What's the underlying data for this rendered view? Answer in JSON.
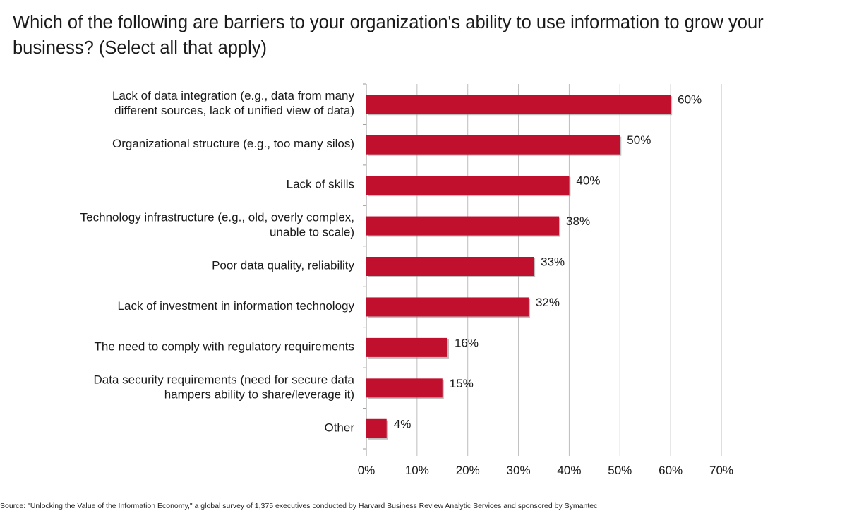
{
  "chart_data": {
    "type": "bar",
    "orientation": "horizontal",
    "title": "Which of the following are barriers to your organization's ability to use information to grow your business? (Select all that apply)",
    "categories": [
      [
        "Lack of data integration (e.g., data from many",
        "different sources, lack of unified view of data)"
      ],
      [
        "Organizational structure (e.g., too many silos)"
      ],
      [
        "Lack of skills"
      ],
      [
        "Technology infrastructure (e.g., old, overly complex,",
        "unable to scale)"
      ],
      [
        "Poor data quality, reliability"
      ],
      [
        "Lack of investment in information technology"
      ],
      [
        "The need to comply with regulatory requirements"
      ],
      [
        "Data security requirements (need for secure data",
        "hampers ability to share/leverage it)"
      ],
      [
        "Other"
      ]
    ],
    "values": [
      60,
      50,
      40,
      38,
      33,
      32,
      16,
      15,
      4
    ],
    "value_labels": [
      "60%",
      "50%",
      "40%",
      "38%",
      "33%",
      "32%",
      "16%",
      "15%",
      "4%"
    ],
    "xlim": [
      0,
      70
    ],
    "x_ticks": [
      0,
      10,
      20,
      30,
      40,
      50,
      60,
      70
    ],
    "x_tick_labels": [
      "0%",
      "10%",
      "20%",
      "30%",
      "40%",
      "50%",
      "60%",
      "70%"
    ],
    "grid": true,
    "bar_color": "#c0102e",
    "xlabel": "",
    "ylabel": ""
  },
  "source": "Source: \"Unlocking the Value of the Information Economy,\" a global survey of 1,375 executives conducted by Harvard Business Review Analytic Services and sponsored by Symantec"
}
